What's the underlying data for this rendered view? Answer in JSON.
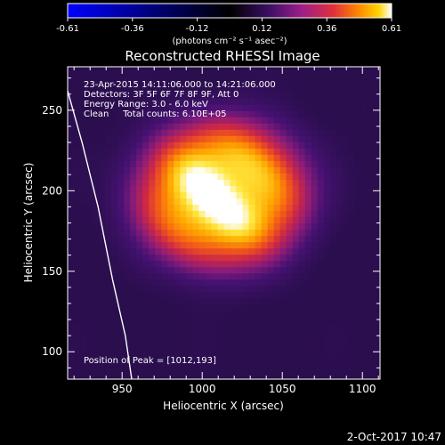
{
  "chart_data": {
    "type": "heatmap",
    "title": "Reconstructed RHESSI Image",
    "xlabel": "Heliocentric X (arcsec)",
    "ylabel": "Heliocentric Y (arcsec)",
    "xlim": [
      916,
      1111
    ],
    "ylim": [
      83,
      277
    ],
    "x_ticks": [
      950,
      1000,
      1050,
      1100
    ],
    "y_ticks": [
      100,
      150,
      200,
      250
    ],
    "colorbar": {
      "range": [
        -0.61,
        0.61
      ],
      "ticks": [
        "-0.61",
        "-0.36",
        "-0.12",
        "0.12",
        "0.36",
        "0.61"
      ],
      "unit_label": "(photons cm⁻² s⁻¹ asec⁻²)",
      "colormap": [
        "#0000ff",
        "#000000",
        "#2b0f55",
        "#7a1fa0",
        "#d2284a",
        "#ff7a00",
        "#ffd000",
        "#ffffff"
      ]
    },
    "source": {
      "center": [
        1012,
        198
      ],
      "peak_position": [
        1012,
        193
      ],
      "sigma_x": 38,
      "sigma_y": 33,
      "peak_value": 0.61
    },
    "limb_curve": [
      [
        916,
        262
      ],
      [
        925,
        230
      ],
      [
        935,
        190
      ],
      [
        944,
        145
      ],
      [
        952,
        110
      ],
      [
        956,
        83
      ]
    ],
    "annotations": [
      "23-Apr-2015 14:11:06.000 to 14:21:06.000",
      "Detectors: 3F 5F 6F 7F 8F 9F, Att 0",
      "Energy Range: 3.0 - 6.0 keV",
      "Clean     Total counts: 6.10E+05"
    ],
    "peak_label": "Position of Peak = [1012,193]"
  },
  "footer_timestamp": "2-Oct-2017 10:47"
}
